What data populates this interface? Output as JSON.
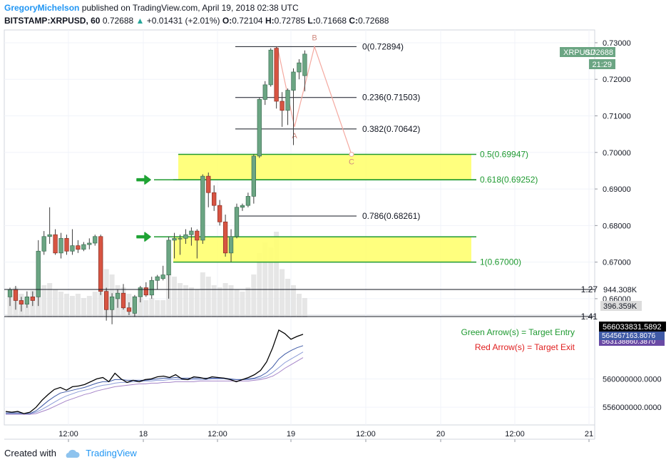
{
  "header": {
    "author": "GregoryMichelson",
    "published_text": "published on TradingView.com, April 19, 2018 02:38 UTC",
    "symbol": "BITSTAMP:XRPUSD, 60",
    "last": "0.72688",
    "change": "+0.01431 (+2.01%)",
    "o_label": "O:",
    "o": "0.72104",
    "h_label": "H:",
    "h": "0.72785",
    "l_label": "L:",
    "l": "0.71668",
    "c_label": "C:",
    "c": "0.72688"
  },
  "badges": {
    "symbol": "XRPUSD",
    "price": "0.72688",
    "countdown": "21:29",
    "volume1": "944.308K",
    "volume2": "396.359K",
    "osc1": "566033831.5892",
    "osc2": "564567163.8076",
    "osc3": "563138860.3870"
  },
  "legend": {
    "entry": "Green Arrow(s) = Target Entry",
    "exit": "Red Arrow(s) = Target Exit"
  },
  "footer": {
    "created_with": "Created with",
    "brand": "TradingView"
  },
  "colors": {
    "bull": "#6ba583",
    "bear": "#d75442",
    "fib_green": "#1f9a31",
    "zone_yellow": "#ffff70",
    "pattern": "#f4a9a0",
    "volume": "#e0e0e0"
  },
  "chart_data": {
    "type": "candlestick",
    "y_ticks": [
      "0.73000",
      "0.72000",
      "0.71000",
      "0.70000",
      "0.69000",
      "0.68000",
      "0.67000",
      "0.66000"
    ],
    "ylim": [
      0.6555,
      0.7335
    ],
    "x_ticks": [
      "12:00",
      "18",
      "12:00",
      "19",
      "12:00",
      "20",
      "12:00",
      "21"
    ],
    "candles": [
      {
        "o": 0.6605,
        "h": 0.663,
        "l": 0.658,
        "c": 0.6625
      },
      {
        "o": 0.6625,
        "h": 0.6635,
        "l": 0.657,
        "c": 0.6595
      },
      {
        "o": 0.6595,
        "h": 0.6605,
        "l": 0.6565,
        "c": 0.6585
      },
      {
        "o": 0.6585,
        "h": 0.662,
        "l": 0.6575,
        "c": 0.6605
      },
      {
        "o": 0.6605,
        "h": 0.662,
        "l": 0.658,
        "c": 0.6595
      },
      {
        "o": 0.6605,
        "h": 0.676,
        "l": 0.658,
        "c": 0.673
      },
      {
        "o": 0.673,
        "h": 0.6785,
        "l": 0.672,
        "c": 0.677
      },
      {
        "o": 0.677,
        "h": 0.685,
        "l": 0.675,
        "c": 0.6775
      },
      {
        "o": 0.6775,
        "h": 0.679,
        "l": 0.672,
        "c": 0.6725
      },
      {
        "o": 0.6725,
        "h": 0.678,
        "l": 0.671,
        "c": 0.6765
      },
      {
        "o": 0.6765,
        "h": 0.6775,
        "l": 0.672,
        "c": 0.673
      },
      {
        "o": 0.673,
        "h": 0.679,
        "l": 0.672,
        "c": 0.6745
      },
      {
        "o": 0.6745,
        "h": 0.676,
        "l": 0.6725,
        "c": 0.6735
      },
      {
        "o": 0.6735,
        "h": 0.6755,
        "l": 0.673,
        "c": 0.6748
      },
      {
        "o": 0.6748,
        "h": 0.6765,
        "l": 0.6735,
        "c": 0.6752
      },
      {
        "o": 0.6752,
        "h": 0.6775,
        "l": 0.6745,
        "c": 0.677
      },
      {
        "o": 0.677,
        "h": 0.6775,
        "l": 0.661,
        "c": 0.662
      },
      {
        "o": 0.662,
        "h": 0.663,
        "l": 0.654,
        "c": 0.657
      },
      {
        "o": 0.657,
        "h": 0.6615,
        "l": 0.653,
        "c": 0.6605
      },
      {
        "o": 0.66,
        "h": 0.6625,
        "l": 0.6575,
        "c": 0.6615
      },
      {
        "o": 0.6615,
        "h": 0.664,
        "l": 0.657,
        "c": 0.6575
      },
      {
        "o": 0.6575,
        "h": 0.659,
        "l": 0.6555,
        "c": 0.6565
      },
      {
        "o": 0.656,
        "h": 0.661,
        "l": 0.655,
        "c": 0.6605
      },
      {
        "o": 0.6605,
        "h": 0.6635,
        "l": 0.659,
        "c": 0.663
      },
      {
        "o": 0.663,
        "h": 0.6645,
        "l": 0.6605,
        "c": 0.661
      },
      {
        "o": 0.661,
        "h": 0.666,
        "l": 0.66,
        "c": 0.665
      },
      {
        "o": 0.665,
        "h": 0.6665,
        "l": 0.6625,
        "c": 0.666
      },
      {
        "o": 0.6655,
        "h": 0.669,
        "l": 0.665,
        "c": 0.6665
      },
      {
        "o": 0.6665,
        "h": 0.677,
        "l": 0.66,
        "c": 0.676
      },
      {
        "o": 0.676,
        "h": 0.678,
        "l": 0.671,
        "c": 0.6765
      },
      {
        "o": 0.6765,
        "h": 0.6775,
        "l": 0.672,
        "c": 0.6765
      },
      {
        "o": 0.6765,
        "h": 0.679,
        "l": 0.675,
        "c": 0.6775
      },
      {
        "o": 0.6775,
        "h": 0.6795,
        "l": 0.6745,
        "c": 0.6785
      },
      {
        "o": 0.6785,
        "h": 0.679,
        "l": 0.671,
        "c": 0.676
      },
      {
        "o": 0.676,
        "h": 0.694,
        "l": 0.675,
        "c": 0.6935
      },
      {
        "o": 0.6935,
        "h": 0.6945,
        "l": 0.685,
        "c": 0.689
      },
      {
        "o": 0.689,
        "h": 0.691,
        "l": 0.684,
        "c": 0.6855
      },
      {
        "o": 0.6855,
        "h": 0.687,
        "l": 0.68,
        "c": 0.681
      },
      {
        "o": 0.681,
        "h": 0.683,
        "l": 0.6715,
        "c": 0.6725
      },
      {
        "o": 0.6725,
        "h": 0.679,
        "l": 0.67,
        "c": 0.677
      },
      {
        "o": 0.677,
        "h": 0.686,
        "l": 0.6765,
        "c": 0.685
      },
      {
        "o": 0.685,
        "h": 0.686,
        "l": 0.684,
        "c": 0.6855
      },
      {
        "o": 0.6855,
        "h": 0.689,
        "l": 0.685,
        "c": 0.688
      },
      {
        "o": 0.688,
        "h": 0.6995,
        "l": 0.686,
        "c": 0.699
      },
      {
        "o": 0.699,
        "h": 0.715,
        "l": 0.6985,
        "c": 0.7145
      },
      {
        "o": 0.7145,
        "h": 0.7195,
        "l": 0.713,
        "c": 0.7185
      },
      {
        "o": 0.7185,
        "h": 0.7285,
        "l": 0.718,
        "c": 0.728
      },
      {
        "o": 0.7285,
        "h": 0.729,
        "l": 0.712,
        "c": 0.714
      },
      {
        "o": 0.714,
        "h": 0.7165,
        "l": 0.707,
        "c": 0.7115
      },
      {
        "o": 0.7115,
        "h": 0.7175,
        "l": 0.7075,
        "c": 0.717
      },
      {
        "o": 0.717,
        "h": 0.723,
        "l": 0.702,
        "c": 0.722
      },
      {
        "o": 0.722,
        "h": 0.7255,
        "l": 0.72,
        "c": 0.7245
      },
      {
        "o": 0.721,
        "h": 0.7279,
        "l": 0.7167,
        "c": 0.7269
      }
    ],
    "volumes": [
      20,
      28,
      22,
      18,
      25,
      35,
      30,
      32,
      26,
      24,
      22,
      20,
      22,
      18,
      20,
      24,
      70,
      45,
      40,
      30,
      28,
      22,
      20,
      18,
      16,
      18,
      16,
      16,
      40,
      38,
      32,
      30,
      28,
      26,
      42,
      38,
      30,
      28,
      32,
      30,
      26,
      24,
      28,
      40,
      60,
      70,
      65,
      80,
      45,
      36,
      30,
      22,
      18
    ],
    "fib_levels": [
      {
        "label": "0(0.72894)",
        "value": 0.72894,
        "color": "#131722"
      },
      {
        "label": "0.236(0.71503)",
        "value": 0.71503,
        "color": "#131722"
      },
      {
        "label": "0.382(0.70642)",
        "value": 0.70642,
        "color": "#131722"
      },
      {
        "label": "0.5(0.69947)",
        "value": 0.69947,
        "color": "#1f9a31"
      },
      {
        "label": "0.618(0.69252)",
        "value": 0.69252,
        "color": "#1f9a31"
      },
      {
        "label": "0.786(0.68261)",
        "value": 0.68261,
        "color": "#131722"
      },
      {
        "label": "1(0.67000)",
        "value": 0.67,
        "color": "#1f9a31"
      }
    ],
    "zones": [
      {
        "from": 0.69252,
        "to": 0.69947
      },
      {
        "from": 0.67,
        "to": 0.67692
      }
    ],
    "entry_levels": [
      0.69252,
      0.67692
    ],
    "ext_levels": [
      {
        "label": "1.27",
        "value": 0.6545
      },
      {
        "label": "1.41",
        "value": 0.647
      }
    ],
    "pattern": [
      {
        "label": "B",
        "value": 0.72894
      },
      {
        "label": "A",
        "value": 0.707
      },
      {
        "label": "C",
        "value": 0.69947
      }
    ],
    "osc_ticks": [
      "560000000.0000",
      "556000000.0000"
    ],
    "osc_ylim": [
      553500000,
      568200000
    ],
    "osc_series": [
      {
        "color": "#000000",
        "values": [
          555.4,
          555.3,
          555.4,
          555.1,
          555.3,
          556.0,
          557.0,
          557.8,
          558.5,
          558.8,
          558.4,
          558.9,
          559.0,
          559.2,
          559.6,
          560.0,
          560.2,
          559.6,
          560.8,
          560.0,
          559.5,
          559.8,
          559.6,
          559.9,
          560.0,
          560.3,
          560.4,
          560.2,
          560.6,
          560.0,
          559.9,
          560.3,
          560.2,
          560.0,
          560.3,
          560.2,
          560.1,
          559.9,
          559.6,
          559.9,
          560.2,
          560.6,
          561.2,
          562.4,
          564.4,
          566.9,
          566.4,
          565.6,
          566.0,
          566.3
        ]
      },
      {
        "color": "#3f5aa6",
        "values": [
          555.2,
          555.2,
          555.2,
          555.1,
          555.1,
          555.5,
          556.2,
          556.9,
          557.5,
          558.0,
          558.2,
          558.4,
          558.6,
          558.8,
          559.1,
          559.4,
          559.6,
          559.6,
          559.9,
          559.9,
          559.8,
          559.8,
          559.8,
          559.8,
          559.9,
          560.0,
          560.1,
          560.1,
          560.2,
          560.1,
          560.1,
          560.1,
          560.1,
          560.1,
          560.1,
          560.1,
          560.1,
          560.0,
          559.9,
          559.9,
          560.0,
          560.1,
          560.4,
          560.9,
          561.7,
          562.8,
          563.5,
          564.0,
          564.4,
          564.7
        ]
      },
      {
        "color": "#8c9cd8",
        "values": [
          555.1,
          555.1,
          555.1,
          555.1,
          555.1,
          555.3,
          555.7,
          556.2,
          556.7,
          557.2,
          557.6,
          557.9,
          558.2,
          558.4,
          558.6,
          558.9,
          559.1,
          559.2,
          559.4,
          559.5,
          559.5,
          559.6,
          559.6,
          559.7,
          559.7,
          559.8,
          559.8,
          559.9,
          559.9,
          559.9,
          559.9,
          559.9,
          559.9,
          559.9,
          560.0,
          560.0,
          560.0,
          559.9,
          559.9,
          559.9,
          559.9,
          560.0,
          560.1,
          560.4,
          560.9,
          561.6,
          562.3,
          562.8,
          563.3,
          563.8
        ]
      },
      {
        "color": "#a584c8",
        "values": [
          555.0,
          555.0,
          555.0,
          555.0,
          555.0,
          555.1,
          555.4,
          555.7,
          556.1,
          556.5,
          556.9,
          557.2,
          557.5,
          557.8,
          558.0,
          558.3,
          558.5,
          558.7,
          558.9,
          559.0,
          559.1,
          559.2,
          559.3,
          559.3,
          559.4,
          559.4,
          559.5,
          559.5,
          559.6,
          559.6,
          559.6,
          559.6,
          559.7,
          559.7,
          559.7,
          559.7,
          559.7,
          559.7,
          559.7,
          559.7,
          559.7,
          559.8,
          559.9,
          560.1,
          560.4,
          560.9,
          561.5,
          562.0,
          562.5,
          563.0
        ]
      }
    ]
  }
}
